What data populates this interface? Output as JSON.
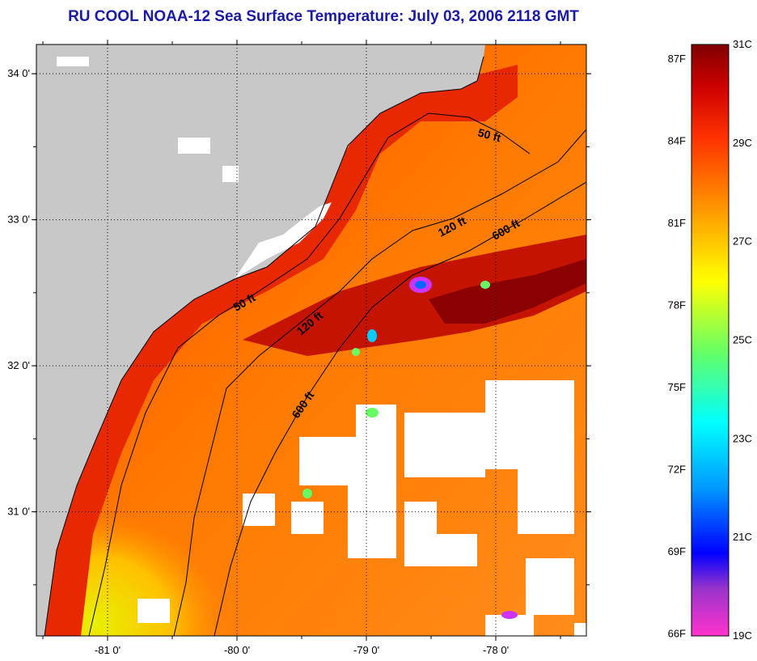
{
  "title": "RU COOL  NOAA-12  Sea Surface Temperature:  July 03, 2006 2118 GMT",
  "map": {
    "lon_range": [
      -81.55,
      -77.3
    ],
    "lat_range": [
      30.15,
      34.2
    ],
    "lon_ticks": [
      {
        "value": -81,
        "label": "-81 0'"
      },
      {
        "value": -80,
        "label": "-80 0'"
      },
      {
        "value": -79,
        "label": "-79 0'"
      },
      {
        "value": -78,
        "label": "-78 0'"
      }
    ],
    "lat_ticks": [
      {
        "value": 34,
        "label": "34 0'"
      },
      {
        "value": 33,
        "label": "33 0'"
      },
      {
        "value": 32,
        "label": "32 0'"
      },
      {
        "value": 31,
        "label": "31 0'"
      }
    ],
    "colors": {
      "land": "#c8c8c8",
      "cloud": "#ffffff",
      "warm": "#e02800",
      "hot": "#8b0000",
      "mid": "#ff6a00",
      "cool": "#ffd700",
      "coastline": "#000000"
    },
    "contours": [
      {
        "label": "50 ft",
        "id": "50ft"
      },
      {
        "label": "120 ft",
        "id": "120ft"
      },
      {
        "label": "600 ft",
        "id": "600ft"
      }
    ]
  },
  "colorbar": {
    "f_labels": [
      "87F",
      "84F",
      "81F",
      "78F",
      "75F",
      "72F",
      "69F",
      "66F"
    ],
    "c_labels": [
      "31C",
      "29C",
      "27C",
      "25C",
      "23C",
      "21C",
      "19C"
    ],
    "temperature_range_c": [
      19,
      31
    ],
    "colors": [
      "#ff33cc",
      "#9933cc",
      "#0000ff",
      "#0099ff",
      "#00ffff",
      "#66ff66",
      "#ffff00",
      "#ff9900",
      "#ff3300",
      "#cc0000",
      "#800000"
    ]
  }
}
